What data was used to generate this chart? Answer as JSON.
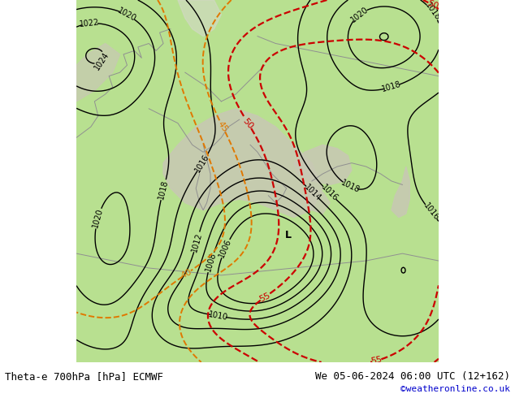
{
  "title_left": "Theta-e 700hPa [hPa] ECMWF",
  "title_right": "We 05-06-2024 06:00 UTC (12+162)",
  "copyright": "©weatheronline.co.uk",
  "bg_color_land": "#b8e08c",
  "bg_color_sea": "#c8c8b8",
  "bg_color_main": "#b0d880",
  "pressure_line_color": "#000000",
  "theta_orange_color": "#e07800",
  "theta_red_color": "#cc0000",
  "border_color": "#909090",
  "label_fontsize": 7,
  "title_fontsize": 9,
  "copyright_fontsize": 8,
  "copyright_color": "#0000cc"
}
